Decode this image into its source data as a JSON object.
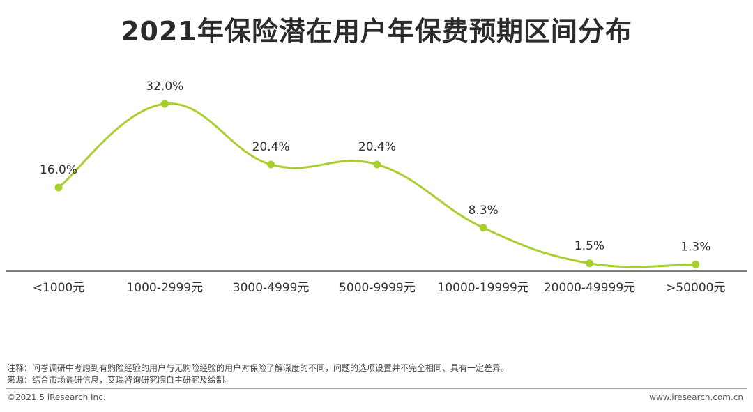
{
  "chart_data": {
    "type": "line",
    "title": "2021年保险潜在用户年保费预期区间分布",
    "categories": [
      "<1000元",
      "1000-2999元",
      "3000-4999元",
      "5000-9999元",
      "10000-19999元",
      "20000-49999元",
      ">50000元"
    ],
    "values": [
      16.0,
      32.0,
      20.4,
      20.4,
      8.3,
      1.5,
      1.3
    ],
    "value_labels": [
      "16.0%",
      "32.0%",
      "20.4%",
      "20.4%",
      "8.3%",
      "1.5%",
      "1.3%"
    ],
    "ylim": [
      0,
      32
    ],
    "smooth": true,
    "grid": false,
    "line_color": "#a8cf2e",
    "axis_color": "#555555"
  },
  "notes": {
    "line1": "注释：问卷调研中考虑到有购险经验的用户与无购险经验的用户对保险了解深度的不同，问题的选项设置并不完全相同、具有一定差异。",
    "line2": "来源：结合市场调研信息，艾瑞咨询研究院自主研究及绘制。"
  },
  "footer": {
    "copyright": "©2021.5 iResearch Inc.",
    "website": "www.iresearch.com.cn"
  }
}
